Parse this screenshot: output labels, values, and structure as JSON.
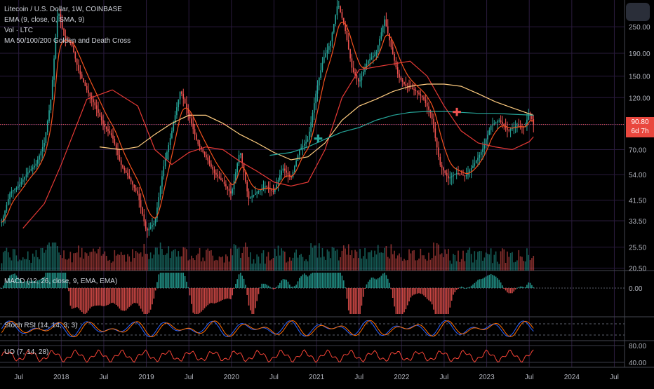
{
  "legend": {
    "symbol": "Litecoin / U.S. Dollar, 1W, COINBASE",
    "ema": "EMA (9, close, 0, SMA, 9)",
    "vol": "Vol · LTC",
    "ma": "MA 50/100/200 Golden and Death Cross"
  },
  "panes": {
    "macd_label": "MACD (12, 26, close, 9, EMA, EMA)",
    "stoch_label": "Stoch RSI (14, 14, 3, 3)",
    "uo_label": "UO (7, 14, 28)"
  },
  "price_tag": {
    "price": "90.80",
    "countdown": "6d 7h"
  },
  "colors": {
    "background": "#000000",
    "up": "#26a69a",
    "down": "#ef5350",
    "ema": "#f4511e",
    "ma50": "#e53935",
    "ma100": "#ffcc80",
    "ma200": "#26a69a",
    "macd_line": "#2962ff",
    "stoch_k": "#2962ff",
    "stoch_d": "#ff6d00",
    "uo": "#f44336",
    "grid": "#2a1b3d"
  },
  "chart_data": {
    "type": "line",
    "title": "Litecoin / U.S. Dollar, 1W, COINBASE",
    "price_scale": "log",
    "ylim": [
      20,
      330
    ],
    "y_ticks": [
      20.5,
      25.5,
      33.5,
      41.5,
      54.0,
      70.0,
      90.8,
      120.0,
      150.0,
      190.0,
      250.0
    ],
    "y_tick_labels": [
      "20.50",
      "25.50",
      "33.50",
      "41.50",
      "54.00",
      "70.00",
      "90.80",
      "120.00",
      "150.00",
      "190.00",
      "250.00"
    ],
    "x_tick_labels": [
      "Jul",
      "2018",
      "Jul",
      "2019",
      "Jul",
      "2020",
      "Jul",
      "2021",
      "Jul",
      "2022",
      "Jul",
      "2023",
      "Jul",
      "2024",
      "Jul"
    ],
    "x_ticks": [
      2017.5,
      2018.0,
      2018.5,
      2019.0,
      2019.5,
      2020.0,
      2020.5,
      2021.0,
      2021.5,
      2022.0,
      2022.5,
      2023.0,
      2023.5,
      2024.0,
      2024.5
    ],
    "xlim": [
      2017.28,
      2024.62
    ],
    "grid": true,
    "series": [
      {
        "name": "Litecoin / U.S. Dollar",
        "x": [
          2017.3,
          2017.4,
          2017.5,
          2017.6,
          2017.7,
          2017.8,
          2017.88,
          2017.96,
          2018.04,
          2018.12,
          2018.2,
          2018.3,
          2018.4,
          2018.5,
          2018.6,
          2018.7,
          2018.8,
          2018.9,
          2019.0,
          2019.1,
          2019.2,
          2019.3,
          2019.4,
          2019.5,
          2019.6,
          2019.7,
          2019.8,
          2019.9,
          2020.0,
          2020.1,
          2020.2,
          2020.3,
          2020.4,
          2020.5,
          2020.6,
          2020.7,
          2020.8,
          2020.9,
          2021.0,
          2021.08,
          2021.16,
          2021.25,
          2021.33,
          2021.42,
          2021.5,
          2021.6,
          2021.7,
          2021.8,
          2021.88,
          2021.96,
          2022.05,
          2022.15,
          2022.25,
          2022.35,
          2022.45,
          2022.55,
          2022.65,
          2022.75,
          2022.85,
          2022.95,
          2023.05,
          2023.15,
          2023.25,
          2023.35,
          2023.45,
          2023.5,
          2023.55
        ],
        "values": [
          33,
          45,
          48,
          55,
          60,
          75,
          120,
          300,
          220,
          210,
          160,
          130,
          110,
          90,
          80,
          60,
          52,
          44,
          30,
          33,
          58,
          85,
          130,
          100,
          75,
          65,
          55,
          50,
          44,
          70,
          42,
          45,
          48,
          45,
          58,
          52,
          70,
          78,
          130,
          180,
          210,
          320,
          250,
          160,
          140,
          175,
          190,
          270,
          200,
          150,
          135,
          130,
          120,
          100,
          60,
          52,
          55,
          53,
          60,
          70,
          90,
          95,
          85,
          90,
          88,
          105,
          90.8
        ]
      },
      {
        "name": "MA 50",
        "x": [
          2017.55,
          2017.8,
          2018.0,
          2018.3,
          2018.6,
          2018.9,
          2019.1,
          2019.3,
          2019.5,
          2019.7,
          2019.9,
          2020.1,
          2020.3,
          2020.5,
          2020.7,
          2020.9,
          2021.1,
          2021.3,
          2021.5,
          2021.7,
          2021.9,
          2022.1,
          2022.3,
          2022.5,
          2022.7,
          2022.9,
          2023.1,
          2023.3,
          2023.5,
          2023.55
        ],
        "values": [
          31,
          40,
          60,
          118,
          130,
          110,
          70,
          60,
          68,
          72,
          70,
          62,
          56,
          50,
          48,
          50,
          70,
          120,
          160,
          165,
          170,
          175,
          150,
          110,
          85,
          75,
          72,
          70,
          76,
          80
        ]
      },
      {
        "name": "MA 100",
        "x": [
          2018.45,
          2018.7,
          2018.9,
          2019.1,
          2019.3,
          2019.5,
          2019.7,
          2019.9,
          2020.1,
          2020.3,
          2020.5,
          2020.7,
          2020.9,
          2021.1,
          2021.3,
          2021.5,
          2021.7,
          2021.9,
          2022.1,
          2022.3,
          2022.5,
          2022.7,
          2022.9,
          2023.1,
          2023.3,
          2023.55
        ],
        "values": [
          72,
          70,
          72,
          82,
          92,
          100,
          100,
          92,
          82,
          75,
          68,
          63,
          65,
          75,
          95,
          110,
          118,
          128,
          135,
          138,
          138,
          135,
          125,
          115,
          108,
          100
        ]
      },
      {
        "name": "MA 200",
        "x": [
          2020.45,
          2020.7,
          2020.9,
          2021.1,
          2021.3,
          2021.5,
          2021.7,
          2021.9,
          2022.1,
          2022.3,
          2022.5,
          2022.7,
          2022.9,
          2023.1,
          2023.3,
          2023.55
        ],
        "values": [
          66,
          68,
          72,
          78,
          84,
          88,
          95,
          100,
          103,
          104,
          104,
          103,
          102,
          102,
          101,
          100
        ]
      }
    ],
    "volume_max": 100,
    "macd_zero_label": "0.00",
    "stoch_levels": [
      20,
      80
    ],
    "uo_ticks": [
      40,
      80
    ],
    "uo_tick_labels": [
      "40.00",
      "80.00"
    ]
  }
}
